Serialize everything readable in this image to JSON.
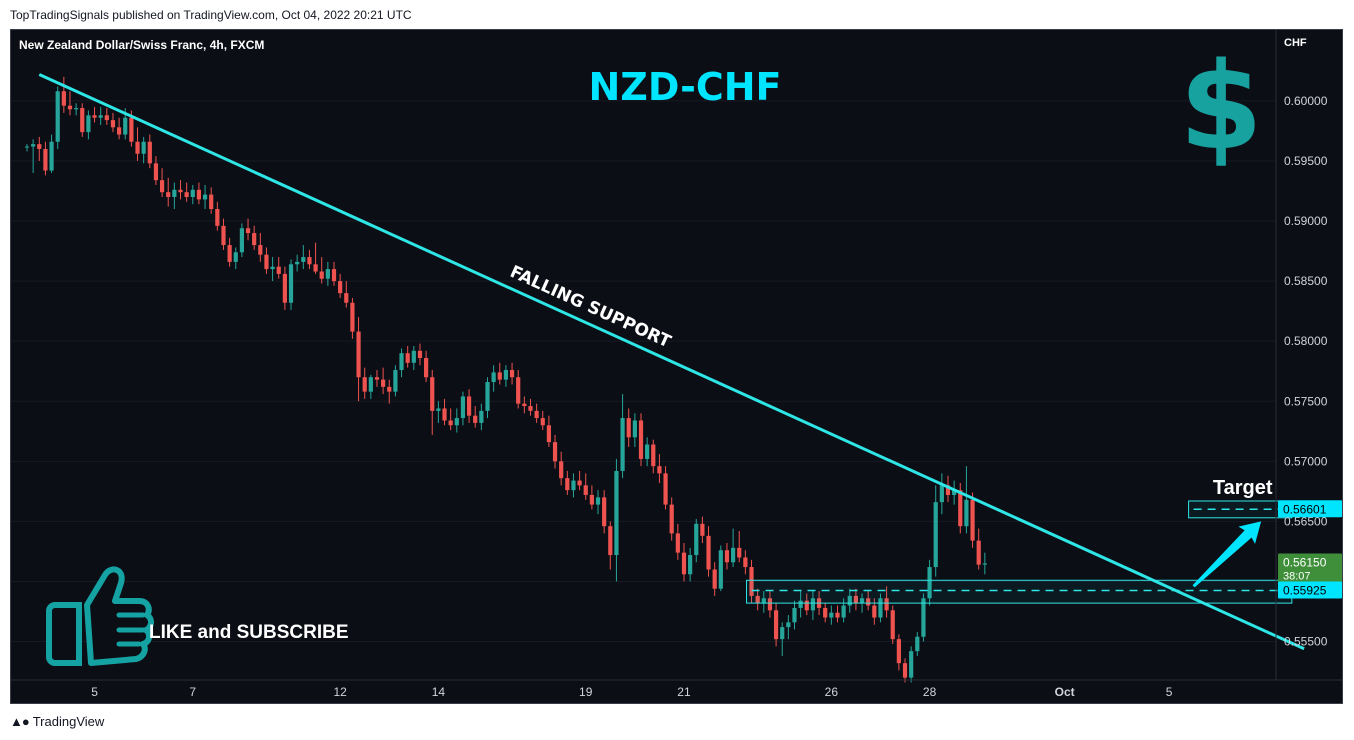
{
  "header": {
    "publisher_text": "TopTradingSignals published on TradingView.com, Oct 04, 2022 20:21 UTC"
  },
  "footer": {
    "brand": "TradingView",
    "logo_icon": "tradingview-logo-icon"
  },
  "colors": {
    "background": "#0c0e15",
    "bullish": "#26a69a",
    "bearish": "#ef5350",
    "trendline": "#2ee6e6",
    "accent": "#00e5ff",
    "dollar": "#17a2a0",
    "thumb": "#14a2a3",
    "price_badge": "#3f8f3a"
  },
  "chart_data": {
    "type": "candlestick",
    "title": "New Zealand Dollar/Swiss Franc, 4h, FXCM",
    "symbol_label": "NZD-CHF",
    "currency_label": "CHF",
    "ylim": [
      0.5518,
      0.6059
    ],
    "y_ticks": [
      0.6,
      0.595,
      0.59,
      0.585,
      0.58,
      0.575,
      0.57,
      0.565,
      0.56,
      0.555
    ],
    "y_tick_labels": [
      "0.60000",
      "0.59500",
      "0.59000",
      "0.58500",
      "0.58000",
      "0.57500",
      "0.57000",
      "0.56500",
      "0.56000",
      "0.55500"
    ],
    "x_ticks": [
      {
        "label": "5",
        "bar": 11
      },
      {
        "label": "7",
        "bar": 27
      },
      {
        "label": "12",
        "bar": 51
      },
      {
        "label": "14",
        "bar": 67
      },
      {
        "label": "19",
        "bar": 91
      },
      {
        "label": "21",
        "bar": 107
      },
      {
        "label": "26",
        "bar": 131
      },
      {
        "label": "28",
        "bar": 147
      },
      {
        "label": "Oct",
        "bar": 169
      },
      {
        "label": "5",
        "bar": 186
      }
    ],
    "bar_count": 200,
    "candles": [
      [
        0.5962,
        0.5964,
        0.5958,
        0.5962
      ],
      [
        0.5962,
        0.5968,
        0.594,
        0.5964
      ],
      [
        0.5964,
        0.597,
        0.595,
        0.596
      ],
      [
        0.596,
        0.5966,
        0.5938,
        0.5942
      ],
      [
        0.5942,
        0.5972,
        0.594,
        0.5966
      ],
      [
        0.5966,
        0.6012,
        0.596,
        0.6008
      ],
      [
        0.6008,
        0.602,
        0.599,
        0.5996
      ],
      [
        0.5996,
        0.6008,
        0.5988,
        0.5993
      ],
      [
        0.5993,
        0.5998,
        0.5988,
        0.5994
      ],
      [
        0.5994,
        0.5998,
        0.597,
        0.5974
      ],
      [
        0.5974,
        0.5992,
        0.5968,
        0.5988
      ],
      [
        0.5988,
        0.5995,
        0.5982,
        0.5986
      ],
      [
        0.5986,
        0.5995,
        0.598,
        0.5988
      ],
      [
        0.5988,
        0.5994,
        0.598,
        0.5984
      ],
      [
        0.5984,
        0.599,
        0.5974,
        0.5978
      ],
      [
        0.5978,
        0.5986,
        0.5968,
        0.5972
      ],
      [
        0.5972,
        0.5994,
        0.5968,
        0.5986
      ],
      [
        0.5986,
        0.5992,
        0.5962,
        0.5966
      ],
      [
        0.5966,
        0.5978,
        0.595,
        0.5956
      ],
      [
        0.5956,
        0.597,
        0.5948,
        0.5966
      ],
      [
        0.5966,
        0.5972,
        0.5944,
        0.5948
      ],
      [
        0.5948,
        0.5954,
        0.593,
        0.5934
      ],
      [
        0.5934,
        0.5944,
        0.592,
        0.5924
      ],
      [
        0.5924,
        0.5936,
        0.5912,
        0.592
      ],
      [
        0.592,
        0.5932,
        0.591,
        0.5926
      ],
      [
        0.5926,
        0.5934,
        0.5918,
        0.5924
      ],
      [
        0.5924,
        0.5932,
        0.5916,
        0.592
      ],
      [
        0.592,
        0.593,
        0.5914,
        0.5926
      ],
      [
        0.5926,
        0.5932,
        0.5914,
        0.5918
      ],
      [
        0.5918,
        0.593,
        0.591,
        0.5922
      ],
      [
        0.5922,
        0.5928,
        0.5906,
        0.591
      ],
      [
        0.591,
        0.5916,
        0.5892,
        0.5896
      ],
      [
        0.5896,
        0.5902,
        0.5876,
        0.588
      ],
      [
        0.588,
        0.5886,
        0.5862,
        0.5866
      ],
      [
        0.5866,
        0.5878,
        0.586,
        0.5874
      ],
      [
        0.5874,
        0.5898,
        0.587,
        0.5894
      ],
      [
        0.5894,
        0.5902,
        0.5884,
        0.589
      ],
      [
        0.589,
        0.5896,
        0.5876,
        0.588
      ],
      [
        0.588,
        0.589,
        0.5866,
        0.5872
      ],
      [
        0.5872,
        0.5878,
        0.5856,
        0.586
      ],
      [
        0.586,
        0.587,
        0.585,
        0.5862
      ],
      [
        0.5862,
        0.587,
        0.5852,
        0.5856
      ],
      [
        0.5856,
        0.5862,
        0.5826,
        0.5832
      ],
      [
        0.5832,
        0.5868,
        0.5826,
        0.5864
      ],
      [
        0.5864,
        0.5872,
        0.5858,
        0.5866
      ],
      [
        0.5866,
        0.588,
        0.586,
        0.587
      ],
      [
        0.587,
        0.5876,
        0.586,
        0.5864
      ],
      [
        0.5864,
        0.5882,
        0.5856,
        0.5858
      ],
      [
        0.5858,
        0.587,
        0.5848,
        0.5852
      ],
      [
        0.5852,
        0.5866,
        0.5846,
        0.586
      ],
      [
        0.586,
        0.5866,
        0.5846,
        0.585
      ],
      [
        0.585,
        0.5856,
        0.5836,
        0.584
      ],
      [
        0.584,
        0.585,
        0.5828,
        0.5832
      ],
      [
        0.5832,
        0.5836,
        0.5802,
        0.5808
      ],
      [
        0.5808,
        0.582,
        0.575,
        0.577
      ],
      [
        0.577,
        0.5778,
        0.5752,
        0.5758
      ],
      [
        0.5758,
        0.5772,
        0.5752,
        0.577
      ],
      [
        0.577,
        0.5776,
        0.5762,
        0.5768
      ],
      [
        0.5768,
        0.5778,
        0.5756,
        0.5762
      ],
      [
        0.5762,
        0.5768,
        0.5748,
        0.5758
      ],
      [
        0.5758,
        0.578,
        0.5754,
        0.5776
      ],
      [
        0.5776,
        0.5794,
        0.577,
        0.579
      ],
      [
        0.579,
        0.5796,
        0.5778,
        0.5782
      ],
      [
        0.5782,
        0.5796,
        0.5776,
        0.5792
      ],
      [
        0.5792,
        0.5798,
        0.578,
        0.5786
      ],
      [
        0.5786,
        0.5792,
        0.5766,
        0.577
      ],
      [
        0.577,
        0.5776,
        0.5722,
        0.5742
      ],
      [
        0.5742,
        0.575,
        0.5732,
        0.5744
      ],
      [
        0.5744,
        0.5752,
        0.573,
        0.5734
      ],
      [
        0.5734,
        0.5744,
        0.5726,
        0.573
      ],
      [
        0.573,
        0.5744,
        0.5724,
        0.5736
      ],
      [
        0.5736,
        0.5758,
        0.573,
        0.5754
      ],
      [
        0.5754,
        0.576,
        0.5732,
        0.5738
      ],
      [
        0.5738,
        0.5746,
        0.5728,
        0.5732
      ],
      [
        0.5732,
        0.5748,
        0.5726,
        0.5742
      ],
      [
        0.5742,
        0.577,
        0.5736,
        0.5766
      ],
      [
        0.5766,
        0.578,
        0.5758,
        0.5774
      ],
      [
        0.5774,
        0.5782,
        0.5764,
        0.5768
      ],
      [
        0.5768,
        0.578,
        0.5762,
        0.5776
      ],
      [
        0.5776,
        0.5782,
        0.5764,
        0.577
      ],
      [
        0.577,
        0.5776,
        0.5744,
        0.5748
      ],
      [
        0.5748,
        0.5754,
        0.574,
        0.5746
      ],
      [
        0.5746,
        0.5752,
        0.5738,
        0.5742
      ],
      [
        0.5742,
        0.5748,
        0.5732,
        0.5736
      ],
      [
        0.5736,
        0.5742,
        0.5726,
        0.573
      ],
      [
        0.573,
        0.5738,
        0.5712,
        0.5716
      ],
      [
        0.5716,
        0.5722,
        0.5694,
        0.57
      ],
      [
        0.57,
        0.5708,
        0.568,
        0.5686
      ],
      [
        0.5686,
        0.5692,
        0.5672,
        0.5676
      ],
      [
        0.5676,
        0.569,
        0.567,
        0.5684
      ],
      [
        0.5684,
        0.5692,
        0.5676,
        0.568
      ],
      [
        0.568,
        0.569,
        0.5668,
        0.5672
      ],
      [
        0.5672,
        0.568,
        0.566,
        0.5664
      ],
      [
        0.5664,
        0.5676,
        0.5656,
        0.567
      ],
      [
        0.567,
        0.5676,
        0.564,
        0.5646
      ],
      [
        0.5646,
        0.565,
        0.561,
        0.5622
      ],
      [
        0.5622,
        0.5702,
        0.56,
        0.5692
      ],
      [
        0.5692,
        0.5756,
        0.5686,
        0.5736
      ],
      [
        0.5736,
        0.5744,
        0.5712,
        0.572
      ],
      [
        0.572,
        0.574,
        0.5712,
        0.5734
      ],
      [
        0.5734,
        0.574,
        0.5696,
        0.5702
      ],
      [
        0.5702,
        0.572,
        0.5696,
        0.5714
      ],
      [
        0.5714,
        0.5718,
        0.569,
        0.5696
      ],
      [
        0.5696,
        0.5706,
        0.5682,
        0.569
      ],
      [
        0.569,
        0.5696,
        0.566,
        0.5664
      ],
      [
        0.5664,
        0.567,
        0.5634,
        0.564
      ],
      [
        0.564,
        0.5648,
        0.5618,
        0.5624
      ],
      [
        0.5624,
        0.5632,
        0.56,
        0.5606
      ],
      [
        0.5606,
        0.5628,
        0.56,
        0.5622
      ],
      [
        0.5622,
        0.5652,
        0.5616,
        0.5648
      ],
      [
        0.5648,
        0.5654,
        0.5632,
        0.5638
      ],
      [
        0.5638,
        0.5646,
        0.5604,
        0.561
      ],
      [
        0.561,
        0.5616,
        0.5588,
        0.5594
      ],
      [
        0.5594,
        0.563,
        0.5592,
        0.5626
      ],
      [
        0.5626,
        0.5632,
        0.561,
        0.5616
      ],
      [
        0.5616,
        0.5644,
        0.5612,
        0.5628
      ],
      [
        0.5628,
        0.5642,
        0.5616,
        0.562
      ],
      [
        0.562,
        0.5626,
        0.5606,
        0.5612
      ],
      [
        0.5612,
        0.5618,
        0.5582,
        0.5588
      ],
      [
        0.5588,
        0.5594,
        0.5576,
        0.5582
      ],
      [
        0.5582,
        0.5592,
        0.5574,
        0.5586
      ],
      [
        0.5586,
        0.5592,
        0.557,
        0.5576
      ],
      [
        0.5576,
        0.5582,
        0.5546,
        0.5552
      ],
      [
        0.5552,
        0.5566,
        0.5538,
        0.5562
      ],
      [
        0.5562,
        0.5572,
        0.5552,
        0.5566
      ],
      [
        0.5566,
        0.5584,
        0.556,
        0.5578
      ],
      [
        0.5578,
        0.5592,
        0.557,
        0.5584
      ],
      [
        0.5584,
        0.559,
        0.5572,
        0.5576
      ],
      [
        0.5576,
        0.5592,
        0.5568,
        0.5586
      ],
      [
        0.5586,
        0.5592,
        0.5572,
        0.5578
      ],
      [
        0.5578,
        0.5582,
        0.5566,
        0.557
      ],
      [
        0.557,
        0.558,
        0.5564,
        0.5574
      ],
      [
        0.5574,
        0.558,
        0.5566,
        0.557
      ],
      [
        0.557,
        0.5586,
        0.5566,
        0.558
      ],
      [
        0.558,
        0.5594,
        0.5574,
        0.5588
      ],
      [
        0.5588,
        0.5594,
        0.5576,
        0.5582
      ],
      [
        0.5582,
        0.559,
        0.5574,
        0.5586
      ],
      [
        0.5586,
        0.5592,
        0.5576,
        0.558
      ],
      [
        0.558,
        0.5586,
        0.5564,
        0.557
      ],
      [
        0.557,
        0.559,
        0.5566,
        0.5586
      ],
      [
        0.5586,
        0.5596,
        0.557,
        0.5576
      ],
      [
        0.5576,
        0.558,
        0.5548,
        0.5552
      ],
      [
        0.5552,
        0.5556,
        0.5526,
        0.5532
      ],
      [
        0.5532,
        0.5536,
        0.5516,
        0.552
      ],
      [
        0.552,
        0.5546,
        0.5516,
        0.5542
      ],
      [
        0.5542,
        0.5558,
        0.5538,
        0.5554
      ],
      [
        0.5554,
        0.559,
        0.555,
        0.5586
      ],
      [
        0.5586,
        0.5618,
        0.558,
        0.5612
      ],
      [
        0.5612,
        0.568,
        0.5604,
        0.5666
      ],
      [
        0.5666,
        0.569,
        0.5656,
        0.568
      ],
      [
        0.568,
        0.5688,
        0.5666,
        0.5672
      ],
      [
        0.5672,
        0.5684,
        0.5664,
        0.5676
      ],
      [
        0.5676,
        0.5682,
        0.564,
        0.5646
      ],
      [
        0.5646,
        0.5696,
        0.564,
        0.5668
      ],
      [
        0.5668,
        0.5674,
        0.5628,
        0.5634
      ],
      [
        0.5634,
        0.5644,
        0.561,
        0.5614
      ],
      [
        0.5614,
        0.5624,
        0.5606,
        0.5615
      ]
    ],
    "candle_start_bar": 0,
    "annotations": {
      "trendline": {
        "from": {
          "bar": 2,
          "price": 0.6022
        },
        "to": {
          "bar": 208,
          "price": 0.5544
        }
      },
      "trendline_label": "FALLING SUPPORT",
      "support_box": {
        "from_bar": 118,
        "to_bar": 206,
        "top": 0.5601,
        "bottom": 0.5582
      },
      "support_line": 0.55925,
      "target_box": {
        "from_bar": 190,
        "to_bar": 206,
        "top": 0.5667,
        "bottom": 0.5653
      },
      "target_line": 0.56601,
      "target_label": "Target",
      "arrow": {
        "from": {
          "bar": 190,
          "price": 0.5596
        },
        "to": {
          "bar": 201,
          "price": 0.565
        }
      }
    },
    "price_labels": {
      "current": "0.56150",
      "countdown": "38:07",
      "support": "0.55925",
      "target": "0.56601"
    },
    "promo_text": "LIKE and SUBSCRIBE",
    "dollar_symbol": "$"
  }
}
